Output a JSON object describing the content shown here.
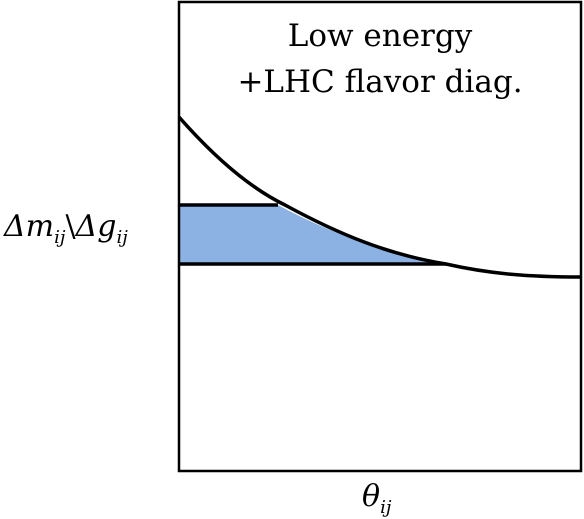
{
  "diagram": {
    "annotation": {
      "line1": "Low energy",
      "line2": "+LHC flavor diag."
    },
    "ylabel": {
      "main_a": "Δm",
      "sub_a": "ij",
      "separator": "\\",
      "main_b": "Δg",
      "sub_b": "ij"
    },
    "xlabel": {
      "main": "θ",
      "sub": "ij"
    },
    "colors": {
      "band_fill": "#8cb2e4",
      "curve": "#000000",
      "frame": "#000000"
    }
  }
}
